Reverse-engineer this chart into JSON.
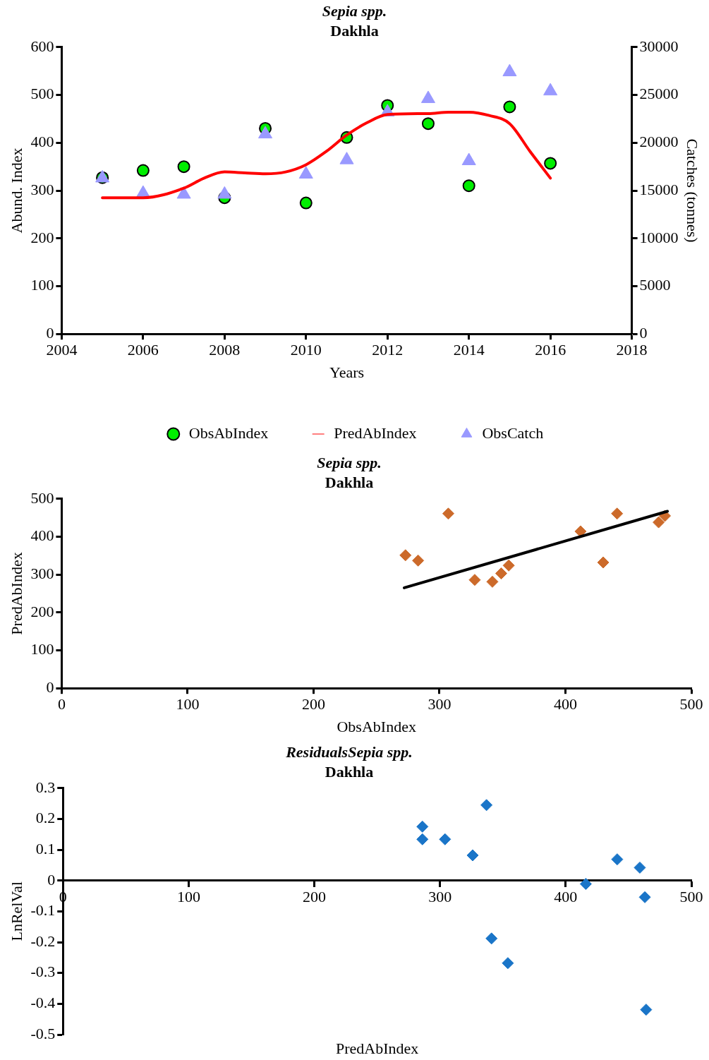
{
  "chart_data": [
    {
      "type": "scatter",
      "title": "Sepia spp.",
      "subtitle": "Dakhla",
      "xlabel": "Years",
      "ylabel": "Abund. Index",
      "y2label": "Catches (tonnes)",
      "xlim": [
        2004,
        2018
      ],
      "xticks": [
        2004,
        2006,
        2008,
        2010,
        2012,
        2014,
        2016,
        2018
      ],
      "ylim": [
        0,
        600
      ],
      "yticks": [
        0,
        100,
        200,
        300,
        400,
        500,
        600
      ],
      "y2lim": [
        0,
        30000
      ],
      "y2ticks": [
        0,
        5000,
        10000,
        15000,
        20000,
        25000,
        30000
      ],
      "legend": "bottom",
      "x": [
        2005,
        2006,
        2007,
        2008,
        2009,
        2010,
        2011,
        2012,
        2013,
        2014,
        2015,
        2016
      ],
      "series": [
        {
          "name": "ObsAbIndex",
          "type": "scatter",
          "marker": "circle",
          "color": "#00ee00",
          "values": [
            327,
            342,
            350,
            285,
            430,
            274,
            411,
            478,
            440,
            310,
            475,
            357
          ]
        },
        {
          "name": "PredAbIndex",
          "type": "line",
          "marker": "none",
          "color": "#ff0000",
          "x": [
            2005,
            2006,
            2007,
            2007.5,
            2008,
            2008.5,
            2009,
            2009.5,
            2010,
            2010.5,
            2011,
            2011.5,
            2012,
            2013,
            2013.5,
            2014,
            2014.5,
            2015,
            2015.5,
            2016
          ],
          "values": [
            285,
            285,
            305,
            326,
            339,
            337,
            335,
            339,
            354,
            382,
            416,
            442,
            459,
            461,
            464,
            464,
            457,
            440,
            382,
            326
          ]
        },
        {
          "name": "ObsCatch",
          "type": "scatter",
          "marker": "triangle",
          "axis": "y2",
          "color": "#9999ff",
          "values": [
            16300,
            14700,
            14600,
            14600,
            20900,
            16700,
            18200,
            23200,
            24600,
            18100,
            27400,
            25400
          ]
        }
      ]
    },
    {
      "type": "scatter",
      "title": "Sepia spp.",
      "subtitle": "Dakhla",
      "xlabel": "ObsAbIndex",
      "ylabel": "PredAbIndex",
      "xlim": [
        0,
        500
      ],
      "xticks": [
        0,
        100,
        200,
        300,
        400,
        500
      ],
      "ylim": [
        0,
        500
      ],
      "yticks": [
        0,
        100,
        200,
        300,
        400,
        500
      ],
      "series": [
        {
          "type": "scatter",
          "marker": "diamond",
          "color": "#cc6a2a",
          "x": [
            273,
            283,
            307,
            328,
            342,
            349,
            355,
            412,
            430,
            441,
            474,
            479
          ],
          "values": [
            351,
            337,
            461,
            286,
            281,
            303,
            324,
            414,
            332,
            461,
            438,
            455
          ]
        },
        {
          "type": "line",
          "marker": "none",
          "color": "#000000",
          "x": [
            272,
            481
          ],
          "values": [
            265,
            467
          ]
        }
      ]
    },
    {
      "type": "scatter",
      "title": "ResidualsSepia spp.",
      "subtitle": "Dakhla",
      "xlabel": "PredAbIndex",
      "ylabel": "LnRelVal",
      "xlim": [
        0,
        500
      ],
      "xticks": [
        0,
        100,
        200,
        300,
        400,
        500
      ],
      "ylim": [
        -0.5,
        0.3
      ],
      "yticks": [
        -0.5,
        -0.4,
        -0.3,
        -0.2,
        -0.1,
        0,
        0.1,
        0.2,
        0.3
      ],
      "marker": "diamond",
      "series": [
        {
          "color": "#1a75c8",
          "x": [
            337,
            286,
            286,
            304,
            326,
            416,
            441,
            459,
            463,
            341,
            354,
            464
          ],
          "values": [
            0.245,
            0.175,
            0.134,
            0.134,
            0.082,
            -0.011,
            0.069,
            0.042,
            -0.054,
            -0.188,
            -0.268,
            -0.419
          ]
        }
      ]
    }
  ]
}
